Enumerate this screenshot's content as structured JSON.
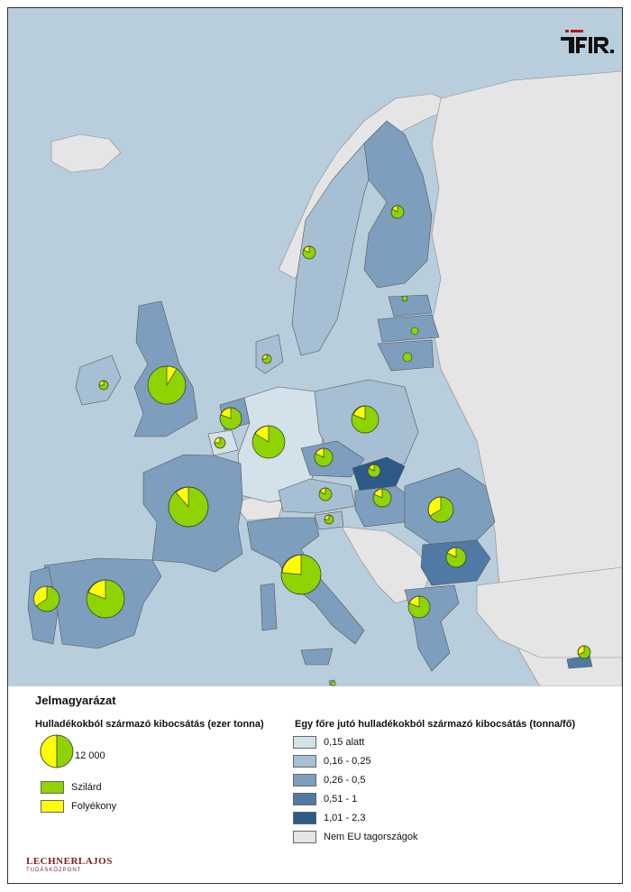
{
  "map": {
    "colors": {
      "sea": "#b9cedc",
      "class1": "#d3e2ea",
      "class2": "#a6bfd3",
      "class3": "#7e9ebd",
      "class4": "#4f7aa3",
      "class5": "#2d5a86",
      "non_eu": "#e5e5e5",
      "solid": "#8fd400",
      "liquid": "#ffff00"
    }
  },
  "logo": {
    "name": "teir-logo-icon"
  },
  "legend": {
    "title": "Jelmagyarázat",
    "emission_title": "Hulladékokból származó kibocsátás (ezer tonna)",
    "pie_value": "12 000",
    "solid_label": "Szilárd",
    "liquid_label": "Folyékony",
    "per_capita_title": "Egy főre jutó hulladékokból származó kibocsátás (tonna/fő)",
    "classes": [
      {
        "label": "0,15 alatt",
        "color": "#d3e2ea"
      },
      {
        "label": "0,16 - 0,25",
        "color": "#a6bfd3"
      },
      {
        "label": "0,26 - 0,5",
        "color": "#7e9ebd"
      },
      {
        "label": "0,51 - 1",
        "color": "#4f7aa3"
      },
      {
        "label": "1,01 - 2,3",
        "color": "#2d5a86"
      },
      {
        "label": "Nem EU tagországok",
        "color": "#e5e5e5"
      }
    ],
    "credit_line1": "LECHNERLAJOS",
    "credit_line2": "TUDÁSKÖZPONT"
  }
}
